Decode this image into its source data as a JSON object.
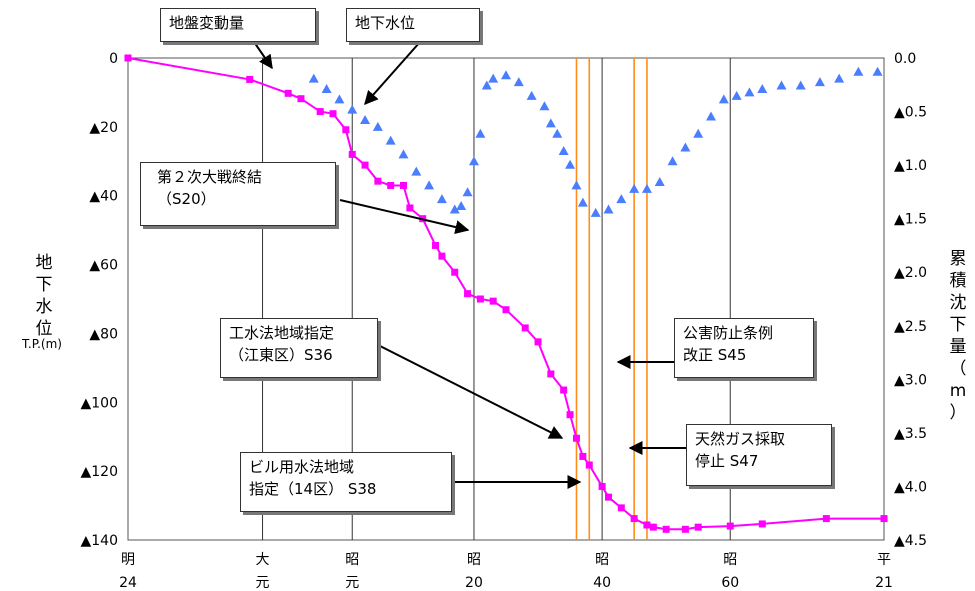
{
  "chart_data": {
    "type": "line",
    "x_era_ticks": [
      {
        "era": "明",
        "num": "24",
        "year": 1891
      },
      {
        "era": "大",
        "num": "元",
        "year": 1912
      },
      {
        "era": "昭",
        "num": "元",
        "year": 1926
      },
      {
        "era": "昭",
        "num": "20",
        "year": 1945
      },
      {
        "era": "昭",
        "num": "40",
        "year": 1965
      },
      {
        "era": "昭",
        "num": "60",
        "year": 1985
      },
      {
        "era": "平",
        "num": "21",
        "year": 2009
      }
    ],
    "xlim": [
      1891,
      2009
    ],
    "y_left": {
      "label": "地下水位",
      "unit": "T.P.(m)",
      "ylim": [
        0,
        -140
      ],
      "ticks": [
        "0",
        "▲20",
        "▲40",
        "▲60",
        "▲80",
        "▲100",
        "▲120",
        "▲140"
      ]
    },
    "y_right": {
      "label": "累積沈下量（m）",
      "ylim": [
        0,
        -4.5
      ],
      "ticks": [
        "0.0",
        "▲0.5",
        "▲1.0",
        "▲1.5",
        "▲2.0",
        "▲2.5",
        "▲3.0",
        "▲3.5",
        "▲4.0",
        "▲4.5"
      ]
    },
    "grid_years": [
      1912,
      1926,
      1945,
      1965,
      1985
    ],
    "event_years": [
      1961,
      1963,
      1970,
      1972
    ],
    "series": [
      {
        "name": "地盤変動量",
        "axis": "right",
        "color": "#ff00ff",
        "marker": "square",
        "points": [
          [
            1891,
            0.0
          ],
          [
            1910,
            -0.2
          ],
          [
            1916,
            -0.33
          ],
          [
            1918,
            -0.38
          ],
          [
            1921,
            -0.5
          ],
          [
            1923,
            -0.52
          ],
          [
            1925,
            -0.67
          ],
          [
            1926,
            -0.9
          ],
          [
            1928,
            -1.0
          ],
          [
            1930,
            -1.15
          ],
          [
            1932,
            -1.19
          ],
          [
            1934,
            -1.19
          ],
          [
            1935,
            -1.4
          ],
          [
            1937,
            -1.5
          ],
          [
            1939,
            -1.75
          ],
          [
            1940,
            -1.85
          ],
          [
            1942,
            -2.0
          ],
          [
            1944,
            -2.2
          ],
          [
            1946,
            -2.25
          ],
          [
            1948,
            -2.27
          ],
          [
            1950,
            -2.35
          ],
          [
            1953,
            -2.52
          ],
          [
            1955,
            -2.65
          ],
          [
            1957,
            -2.95
          ],
          [
            1959,
            -3.1
          ],
          [
            1960,
            -3.33
          ],
          [
            1961,
            -3.55
          ],
          [
            1962,
            -3.72
          ],
          [
            1963,
            -3.8
          ],
          [
            1965,
            -4.0
          ],
          [
            1966,
            -4.1
          ],
          [
            1968,
            -4.2
          ],
          [
            1970,
            -4.3
          ],
          [
            1972,
            -4.36
          ],
          [
            1973,
            -4.38
          ],
          [
            1975,
            -4.4
          ],
          [
            1978,
            -4.4
          ],
          [
            1980,
            -4.38
          ],
          [
            1985,
            -4.37
          ],
          [
            1990,
            -4.35
          ],
          [
            2000,
            -4.3
          ],
          [
            2009,
            -4.3
          ]
        ]
      },
      {
        "name": "地下水位",
        "axis": "left",
        "color": "#4a7eff",
        "marker": "triangle",
        "points": [
          [
            1920,
            -6
          ],
          [
            1922,
            -9
          ],
          [
            1924,
            -12
          ],
          [
            1926,
            -15
          ],
          [
            1928,
            -18
          ],
          [
            1930,
            -20
          ],
          [
            1932,
            -24
          ],
          [
            1934,
            -28
          ],
          [
            1936,
            -33
          ],
          [
            1938,
            -37
          ],
          [
            1940,
            -41
          ],
          [
            1942,
            -44
          ],
          [
            1943,
            -43
          ],
          [
            1944,
            -39
          ],
          [
            1945,
            -30
          ],
          [
            1946,
            -22
          ],
          [
            1947,
            -8
          ],
          [
            1948,
            -6
          ],
          [
            1950,
            -5
          ],
          [
            1952,
            -7
          ],
          [
            1954,
            -11
          ],
          [
            1956,
            -14
          ],
          [
            1957,
            -19
          ],
          [
            1958,
            -22
          ],
          [
            1959,
            -27
          ],
          [
            1960,
            -31
          ],
          [
            1961,
            -37
          ],
          [
            1962,
            -42
          ],
          [
            1964,
            -45
          ],
          [
            1966,
            -44
          ],
          [
            1968,
            -41
          ],
          [
            1970,
            -38
          ],
          [
            1972,
            -38
          ],
          [
            1974,
            -36
          ],
          [
            1976,
            -30
          ],
          [
            1978,
            -26
          ],
          [
            1980,
            -22
          ],
          [
            1982,
            -17
          ],
          [
            1984,
            -12
          ],
          [
            1986,
            -11
          ],
          [
            1988,
            -10
          ],
          [
            1990,
            -9
          ],
          [
            1993,
            -8
          ],
          [
            1996,
            -8
          ],
          [
            1999,
            -7
          ],
          [
            2002,
            -6
          ],
          [
            2005,
            -4
          ],
          [
            2008,
            -4
          ]
        ]
      }
    ],
    "annotations": [
      {
        "lines": [
          "地盤変動量"
        ]
      },
      {
        "lines": [
          "地下水位"
        ]
      },
      {
        "lines": [
          "第２次大戦終結",
          "（S20）"
        ]
      },
      {
        "lines": [
          "工水法地域指定",
          "（江東区）S36"
        ]
      },
      {
        "lines": [
          "ビル用水法地域",
          "指定（14区） S38"
        ]
      },
      {
        "lines": [
          "公害防止条例",
          "改正 S45"
        ]
      },
      {
        "lines": [
          "天然ガス採取",
          "停止 S47"
        ]
      }
    ]
  }
}
